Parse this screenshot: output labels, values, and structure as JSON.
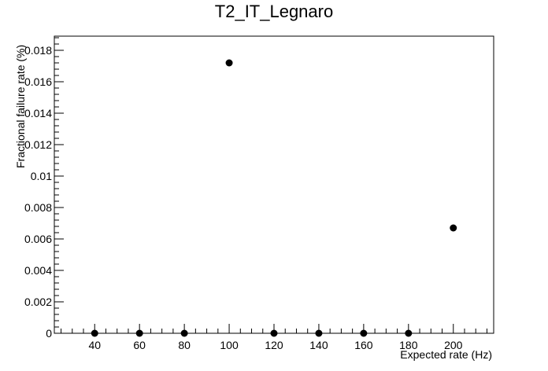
{
  "chart_data": {
    "type": "scatter",
    "title": "T2_IT_Legnaro",
    "xlabel": "Expected rate (Hz)",
    "ylabel": "Fractional failure rate (%)",
    "xlim": [
      22,
      218
    ],
    "ylim": [
      0,
      0.0189
    ],
    "grid": false,
    "legend": "none",
    "marker_color": "#000000",
    "x_ticks": [
      40,
      60,
      80,
      100,
      120,
      140,
      160,
      180,
      200
    ],
    "y_ticks": [
      {
        "value": 0,
        "label": "0"
      },
      {
        "value": 0.002,
        "label": "0.002"
      },
      {
        "value": 0.004,
        "label": "0.004"
      },
      {
        "value": 0.006,
        "label": "0.006"
      },
      {
        "value": 0.008,
        "label": "0.008"
      },
      {
        "value": 0.01,
        "label": "0.01"
      },
      {
        "value": 0.012,
        "label": "0.012"
      },
      {
        "value": 0.014,
        "label": "0.014"
      },
      {
        "value": 0.016,
        "label": "0.016"
      },
      {
        "value": 0.018,
        "label": "0.018"
      }
    ],
    "points": [
      {
        "x": 40,
        "y": 0
      },
      {
        "x": 60,
        "y": 0
      },
      {
        "x": 80,
        "y": 0
      },
      {
        "x": 100,
        "y": 0.0172
      },
      {
        "x": 120,
        "y": 0
      },
      {
        "x": 140,
        "y": 0
      },
      {
        "x": 160,
        "y": 0
      },
      {
        "x": 180,
        "y": 0
      },
      {
        "x": 200,
        "y": 0.0067
      }
    ]
  }
}
